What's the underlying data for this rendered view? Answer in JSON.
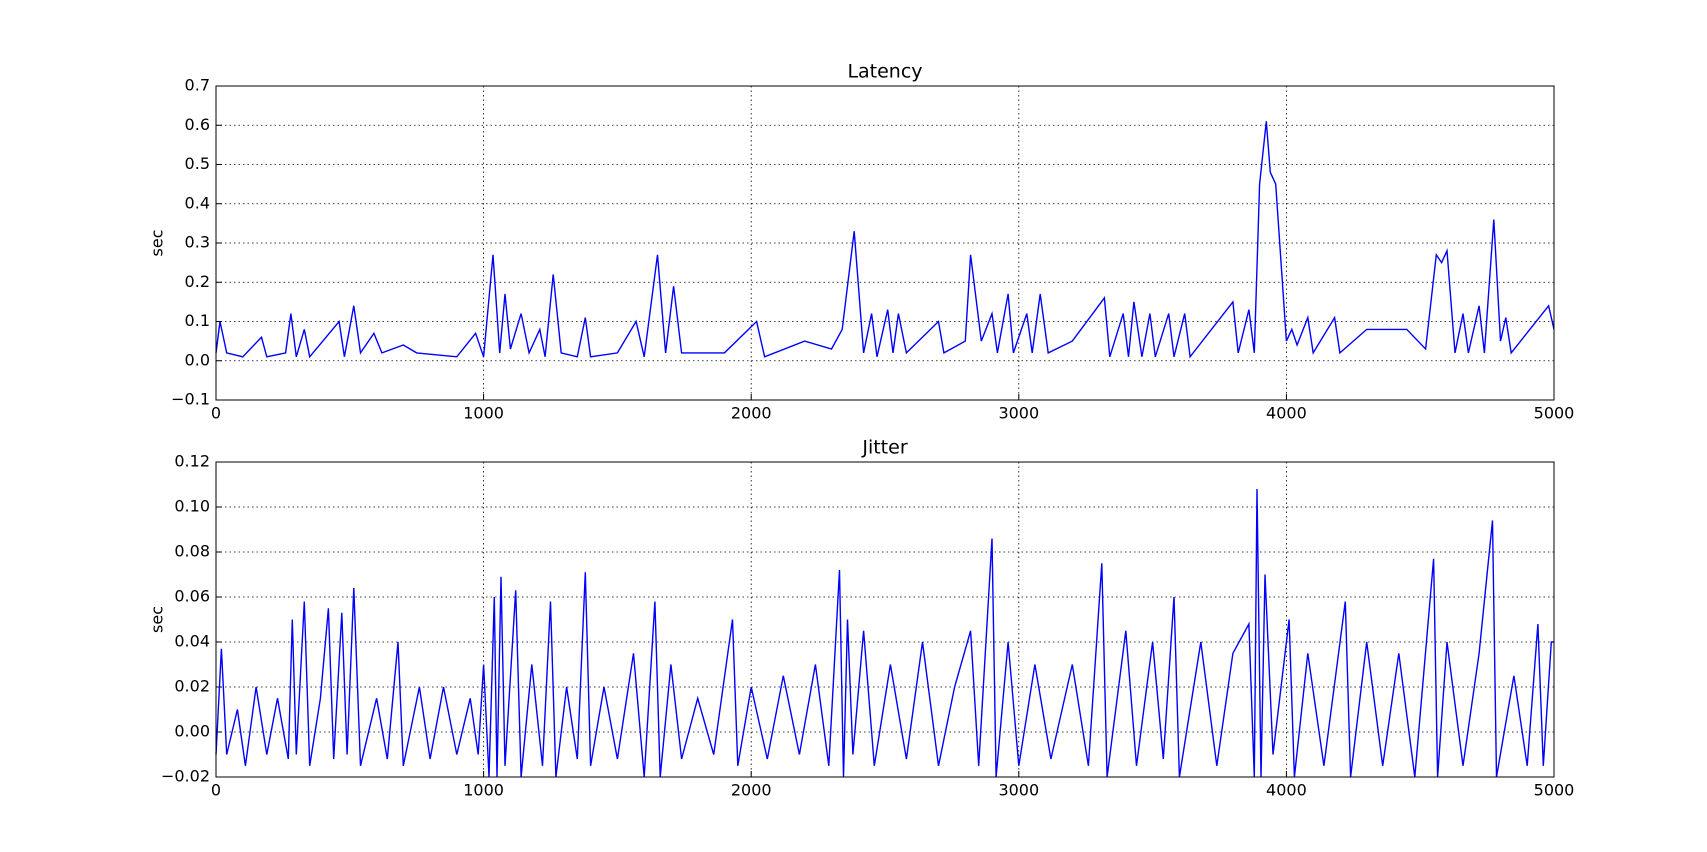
{
  "chart_data": [
    {
      "type": "line",
      "title": "Latency",
      "ylabel": "sec",
      "grid": true,
      "xlim": [
        0,
        5000
      ],
      "xticks": [
        0,
        1000,
        2000,
        3000,
        4000,
        5000
      ],
      "ylim": [
        -0.1,
        0.7
      ],
      "yticks": [
        {
          "value": -0.1,
          "label": "−0.1"
        },
        {
          "value": 0,
          "label": "0.0"
        },
        0.1,
        0.2,
        0.3,
        0.4,
        0.5,
        0.6,
        0.7
      ],
      "x": [
        0,
        15,
        40,
        100,
        170,
        190,
        260,
        280,
        300,
        330,
        350,
        460,
        480,
        515,
        540,
        590,
        620,
        700,
        750,
        900,
        970,
        1000,
        1035,
        1060,
        1080,
        1100,
        1140,
        1170,
        1210,
        1230,
        1260,
        1290,
        1350,
        1380,
        1400,
        1500,
        1570,
        1600,
        1650,
        1680,
        1710,
        1740,
        1900,
        2020,
        2050,
        2200,
        2300,
        2340,
        2385,
        2420,
        2450,
        2470,
        2510,
        2530,
        2550,
        2580,
        2700,
        2720,
        2800,
        2820,
        2860,
        2900,
        2920,
        2960,
        2980,
        3030,
        3050,
        3080,
        3110,
        3200,
        3320,
        3340,
        3390,
        3410,
        3430,
        3460,
        3490,
        3510,
        3560,
        3580,
        3620,
        3640,
        3800,
        3820,
        3860,
        3880,
        3900,
        3925,
        3940,
        3960,
        4000,
        4020,
        4040,
        4080,
        4100,
        4180,
        4200,
        4300,
        4450,
        4520,
        4560,
        4580,
        4600,
        4630,
        4660,
        4680,
        4720,
        4740,
        4775,
        4800,
        4820,
        4840,
        4980,
        5000
      ],
      "series": [
        {
          "color": "#0000ff",
          "values": [
            0.02,
            0.1,
            0.02,
            0.01,
            0.06,
            0.01,
            0.02,
            0.12,
            0.01,
            0.08,
            0.01,
            0.1,
            0.01,
            0.14,
            0.02,
            0.07,
            0.02,
            0.04,
            0.02,
            0.01,
            0.07,
            0.01,
            0.27,
            0.02,
            0.17,
            0.03,
            0.12,
            0.02,
            0.08,
            0.01,
            0.22,
            0.02,
            0.01,
            0.11,
            0.01,
            0.02,
            0.1,
            0.01,
            0.27,
            0.02,
            0.19,
            0.02,
            0.02,
            0.1,
            0.01,
            0.05,
            0.03,
            0.08,
            0.33,
            0.02,
            0.12,
            0.01,
            0.13,
            0.02,
            0.12,
            0.02,
            0.1,
            0.02,
            0.05,
            0.27,
            0.05,
            0.12,
            0.02,
            0.17,
            0.02,
            0.12,
            0.02,
            0.17,
            0.02,
            0.05,
            0.16,
            0.01,
            0.12,
            0.01,
            0.15,
            0.01,
            0.12,
            0.01,
            0.12,
            0.01,
            0.12,
            0.01,
            0.15,
            0.02,
            0.13,
            0.02,
            0.45,
            0.61,
            0.48,
            0.45,
            0.05,
            0.08,
            0.04,
            0.11,
            0.02,
            0.11,
            0.02,
            0.08,
            0.08,
            0.03,
            0.27,
            0.25,
            0.28,
            0.02,
            0.12,
            0.02,
            0.14,
            0.02,
            0.36,
            0.05,
            0.11,
            0.02,
            0.14,
            0.08
          ]
        }
      ]
    },
    {
      "type": "line",
      "title": "Jitter",
      "ylabel": "sec",
      "grid": true,
      "xlim": [
        0,
        5000
      ],
      "xticks": [
        0,
        1000,
        2000,
        3000,
        4000,
        5000
      ],
      "ylim": [
        -0.02,
        0.12
      ],
      "yticks": [
        {
          "value": -0.02,
          "label": "−0.02"
        },
        {
          "value": 0,
          "label": "0.00"
        },
        0.02,
        0.04,
        0.06,
        0.08,
        {
          "value": 0.1,
          "label": "0.10"
        },
        0.12
      ],
      "x": [
        0,
        20,
        40,
        80,
        110,
        150,
        190,
        230,
        270,
        285,
        300,
        330,
        350,
        390,
        420,
        440,
        470,
        490,
        515,
        540,
        600,
        640,
        680,
        700,
        760,
        800,
        850,
        900,
        950,
        980,
        1000,
        1020,
        1040,
        1050,
        1065,
        1080,
        1120,
        1140,
        1180,
        1220,
        1250,
        1270,
        1310,
        1350,
        1380,
        1400,
        1450,
        1500,
        1560,
        1600,
        1640,
        1660,
        1700,
        1740,
        1800,
        1860,
        1930,
        1950,
        2000,
        2060,
        2120,
        2180,
        2240,
        2290,
        2330,
        2345,
        2360,
        2380,
        2420,
        2460,
        2520,
        2580,
        2640,
        2700,
        2760,
        2820,
        2850,
        2900,
        2915,
        2960,
        3000,
        3060,
        3120,
        3200,
        3260,
        3310,
        3330,
        3400,
        3440,
        3500,
        3540,
        3580,
        3600,
        3680,
        3740,
        3800,
        3860,
        3880,
        3890,
        3905,
        3920,
        3950,
        4010,
        4030,
        4080,
        4140,
        4220,
        4240,
        4300,
        4360,
        4420,
        4480,
        4550,
        4565,
        4600,
        4660,
        4720,
        4770,
        4785,
        4850,
        4900,
        4940,
        4960,
        4990,
        5000
      ],
      "series": [
        {
          "color": "#0000ff",
          "values": [
            -0.01,
            0.037,
            -0.01,
            0.01,
            -0.015,
            0.02,
            -0.01,
            0.015,
            -0.012,
            0.05,
            -0.01,
            0.058,
            -0.015,
            0.015,
            0.055,
            -0.012,
            0.053,
            -0.01,
            0.064,
            -0.015,
            0.015,
            -0.012,
            0.04,
            -0.015,
            0.02,
            -0.012,
            0.02,
            -0.01,
            0.015,
            -0.01,
            0.03,
            -0.02,
            0.06,
            -0.02,
            0.069,
            -0.015,
            0.063,
            -0.02,
            0.03,
            -0.015,
            0.058,
            -0.02,
            0.02,
            -0.012,
            0.071,
            -0.015,
            0.02,
            -0.012,
            0.035,
            -0.02,
            0.058,
            -0.02,
            0.03,
            -0.012,
            0.015,
            -0.01,
            0.05,
            -0.015,
            0.02,
            -0.012,
            0.025,
            -0.01,
            0.03,
            -0.015,
            0.072,
            -0.02,
            0.05,
            -0.01,
            0.045,
            -0.015,
            0.03,
            -0.012,
            0.04,
            -0.015,
            0.02,
            0.045,
            -0.015,
            0.086,
            -0.02,
            0.04,
            -0.015,
            0.03,
            -0.012,
            0.03,
            -0.015,
            0.075,
            -0.02,
            0.045,
            -0.015,
            0.04,
            -0.012,
            0.06,
            -0.02,
            0.04,
            -0.015,
            0.035,
            0.048,
            -0.02,
            0.108,
            -0.02,
            0.07,
            -0.01,
            0.05,
            -0.02,
            0.035,
            -0.015,
            0.058,
            -0.02,
            0.04,
            -0.015,
            0.035,
            -0.02,
            0.077,
            -0.02,
            0.04,
            -0.015,
            0.035,
            0.094,
            -0.02,
            0.025,
            -0.015,
            0.048,
            -0.015,
            0.04,
            0.04
          ]
        }
      ]
    }
  ]
}
